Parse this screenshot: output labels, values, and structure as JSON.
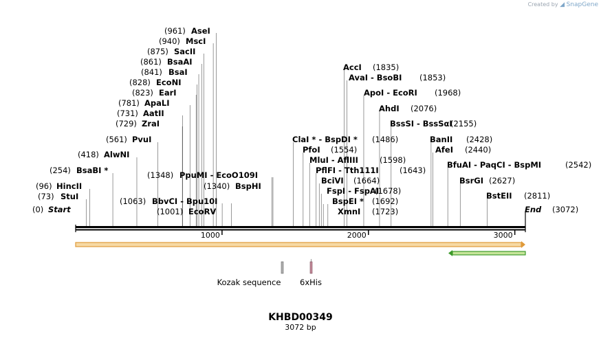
{
  "brand": {
    "prefix": "Created by",
    "name": "SnapGene"
  },
  "map": {
    "title": "KHBD00349",
    "length_label": "3072 bp",
    "total_bp": 3072,
    "ticks": [
      1000,
      2000,
      3000
    ],
    "start_label": "Start",
    "start_pos": "(0)",
    "end_label": "End",
    "end_pos": "(3072)"
  },
  "sites": [
    {
      "name": "StuI",
      "pos": 73
    },
    {
      "name": "HincII",
      "pos": 96
    },
    {
      "name": "BsaBI *",
      "pos": 254
    },
    {
      "name": "AlwNI",
      "pos": 418
    },
    {
      "name": "PvuI",
      "pos": 561
    },
    {
      "name": "ZraI",
      "pos": 729
    },
    {
      "name": "AatII",
      "pos": 731
    },
    {
      "name": "ApaLI",
      "pos": 781
    },
    {
      "name": "EarI",
      "pos": 823
    },
    {
      "name": "EcoNI",
      "pos": 828
    },
    {
      "name": "BsaI",
      "pos": 841
    },
    {
      "name": "BsaAI",
      "pos": 861
    },
    {
      "name": "SacII",
      "pos": 875
    },
    {
      "name": "MscI",
      "pos": 940
    },
    {
      "name": "AseI",
      "pos": 961
    },
    {
      "name": "EcoRV",
      "pos": 1001
    },
    {
      "name": "BbvCI",
      "pos": 1063,
      "alt": "Bpu10I"
    },
    {
      "name": "PpuMI",
      "pos": 1348,
      "alt": "EcoO109I"
    },
    {
      "name": "BspHI",
      "pos": 1340
    },
    {
      "name": "ClaI *",
      "pos": 1486,
      "alt": "BspDI *"
    },
    {
      "name": "PfoI",
      "pos": 1554
    },
    {
      "name": "MluI",
      "pos": 1598,
      "alt": "AflIII"
    },
    {
      "name": "PflFI",
      "pos": 1643,
      "alt": "Tth111I"
    },
    {
      "name": "BciVI",
      "pos": 1664
    },
    {
      "name": "FspI",
      "pos": 1678,
      "alt": "FspAI"
    },
    {
      "name": "BspEI *",
      "pos": 1692
    },
    {
      "name": "XmnI",
      "pos": 1723
    },
    {
      "name": "AccI",
      "pos": 1835
    },
    {
      "name": "AvaI",
      "pos": 1853,
      "alt": "BsoBI"
    },
    {
      "name": "ApoI",
      "pos": 1968,
      "alt": "EcoRI"
    },
    {
      "name": "AhdI",
      "pos": 2076
    },
    {
      "name": "BssSI",
      "pos": 2155,
      "alt": "BssSαI"
    },
    {
      "name": "BanII",
      "pos": 2428
    },
    {
      "name": "AfeI",
      "pos": 2440
    },
    {
      "name": "BfuAI",
      "pos": 2542,
      "alt": "PaqCI",
      "alt2": "BspMI"
    },
    {
      "name": "BsrGI",
      "pos": 2627
    },
    {
      "name": "BstEII",
      "pos": 2811
    }
  ],
  "features": [
    {
      "name": "Kozak sequence",
      "color": "#b0b0b0"
    },
    {
      "name": "6xHis",
      "color": "#c48a9a"
    }
  ],
  "colors": {
    "orange_fill": "#f6d9a4",
    "orange_edge": "#e09a3a",
    "green_fill": "#c7e59b",
    "green_edge": "#3c9a2a"
  }
}
